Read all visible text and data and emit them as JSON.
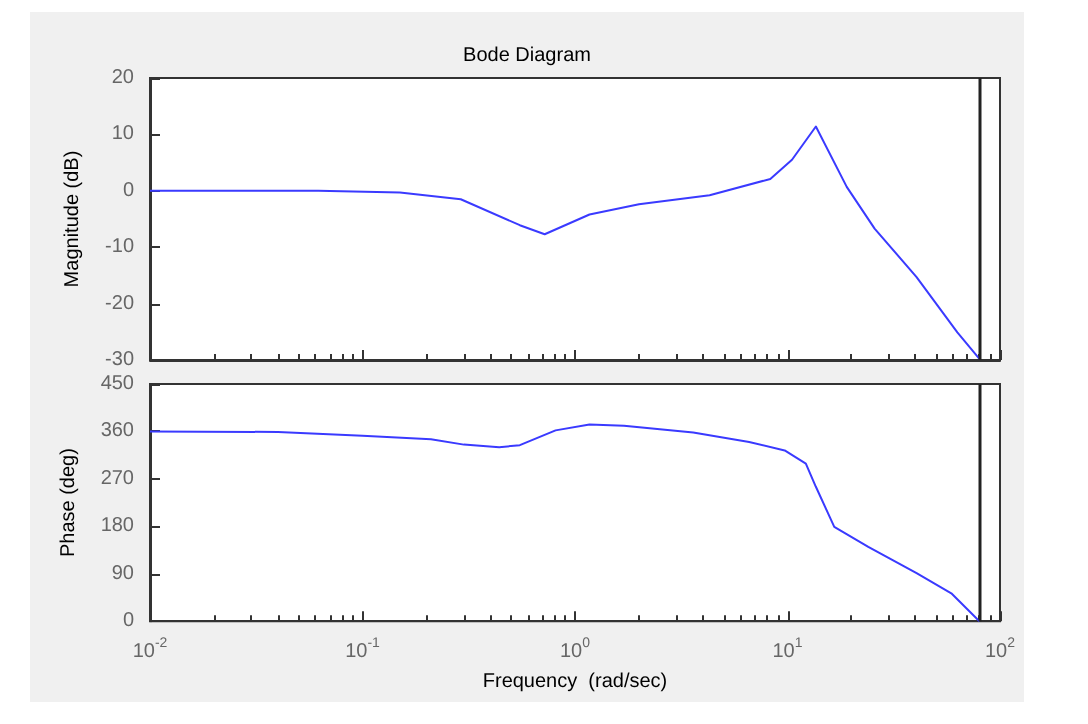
{
  "chart_data": [
    {
      "type": "line",
      "title": "Bode Diagram",
      "ylabel": "Magnitude (dB)",
      "x": [
        0.01,
        0.062,
        0.15,
        0.29,
        0.55,
        0.72,
        1.17,
        2.0,
        4.3,
        8.3,
        10.5,
        13.6,
        19,
        25.7,
        40.5,
        63,
        80
      ],
      "series": [
        {
          "color": "#3a3aff",
          "values": [
            0,
            0,
            -0.3,
            -1.5,
            -6.1,
            -7.7,
            -4.2,
            -2.4,
            -0.8,
            2.1,
            5.5,
            11.4,
            0.7,
            -6.7,
            -15.3,
            -25.1,
            -29.8
          ]
        }
      ],
      "xlim": [
        0.01,
        100
      ],
      "xticks": [
        {
          "value": 0.01,
          "label": null
        },
        {
          "value": 0.1,
          "label": null
        },
        {
          "value": 1,
          "label": null
        },
        {
          "value": 10,
          "label": null
        },
        {
          "value": 100,
          "label": null
        }
      ],
      "log": "x",
      "ylim": [
        -30,
        20
      ],
      "yticks": [
        -30,
        -20,
        -10,
        0,
        10,
        20
      ],
      "grid": false,
      "tick_labels": "y",
      "ref_lines": [
        {
          "axis": "x",
          "value": 80,
          "color": "#222222"
        }
      ]
    },
    {
      "type": "line",
      "xlabel": "Frequency  (rad/sec)",
      "ylabel": "Phase (deg)",
      "x": [
        0.01,
        0.04,
        0.1,
        0.21,
        0.3,
        0.44,
        0.55,
        0.81,
        1.17,
        1.7,
        3.6,
        6.6,
        9.7,
        12.2,
        13.6,
        16.6,
        24,
        40.5,
        59,
        80
      ],
      "series": [
        {
          "color": "#3a3aff",
          "values": [
            360,
            359,
            352,
            345,
            335,
            330,
            334,
            362,
            373,
            371,
            358,
            340,
            324,
            299,
            255,
            179,
            141,
            91,
            53,
            0
          ]
        }
      ],
      "xlim": [
        0.01,
        100
      ],
      "xticks": [
        {
          "value": 0.01,
          "label": "10$^{-2}$"
        },
        {
          "value": 0.1,
          "label": "10$^{-1}$"
        },
        {
          "value": 1,
          "label": "10$^{0}$"
        },
        {
          "value": 10,
          "label": "10$^{1}$"
        },
        {
          "value": 100,
          "label": "10$^{2}$"
        }
      ],
      "log": "x",
      "ylim": [
        0,
        450
      ],
      "yticks": [
        0,
        90,
        180,
        270,
        360,
        450
      ],
      "grid": false,
      "ref_lines": [
        {
          "axis": "x",
          "value": 80,
          "color": "#222222"
        }
      ]
    }
  ]
}
